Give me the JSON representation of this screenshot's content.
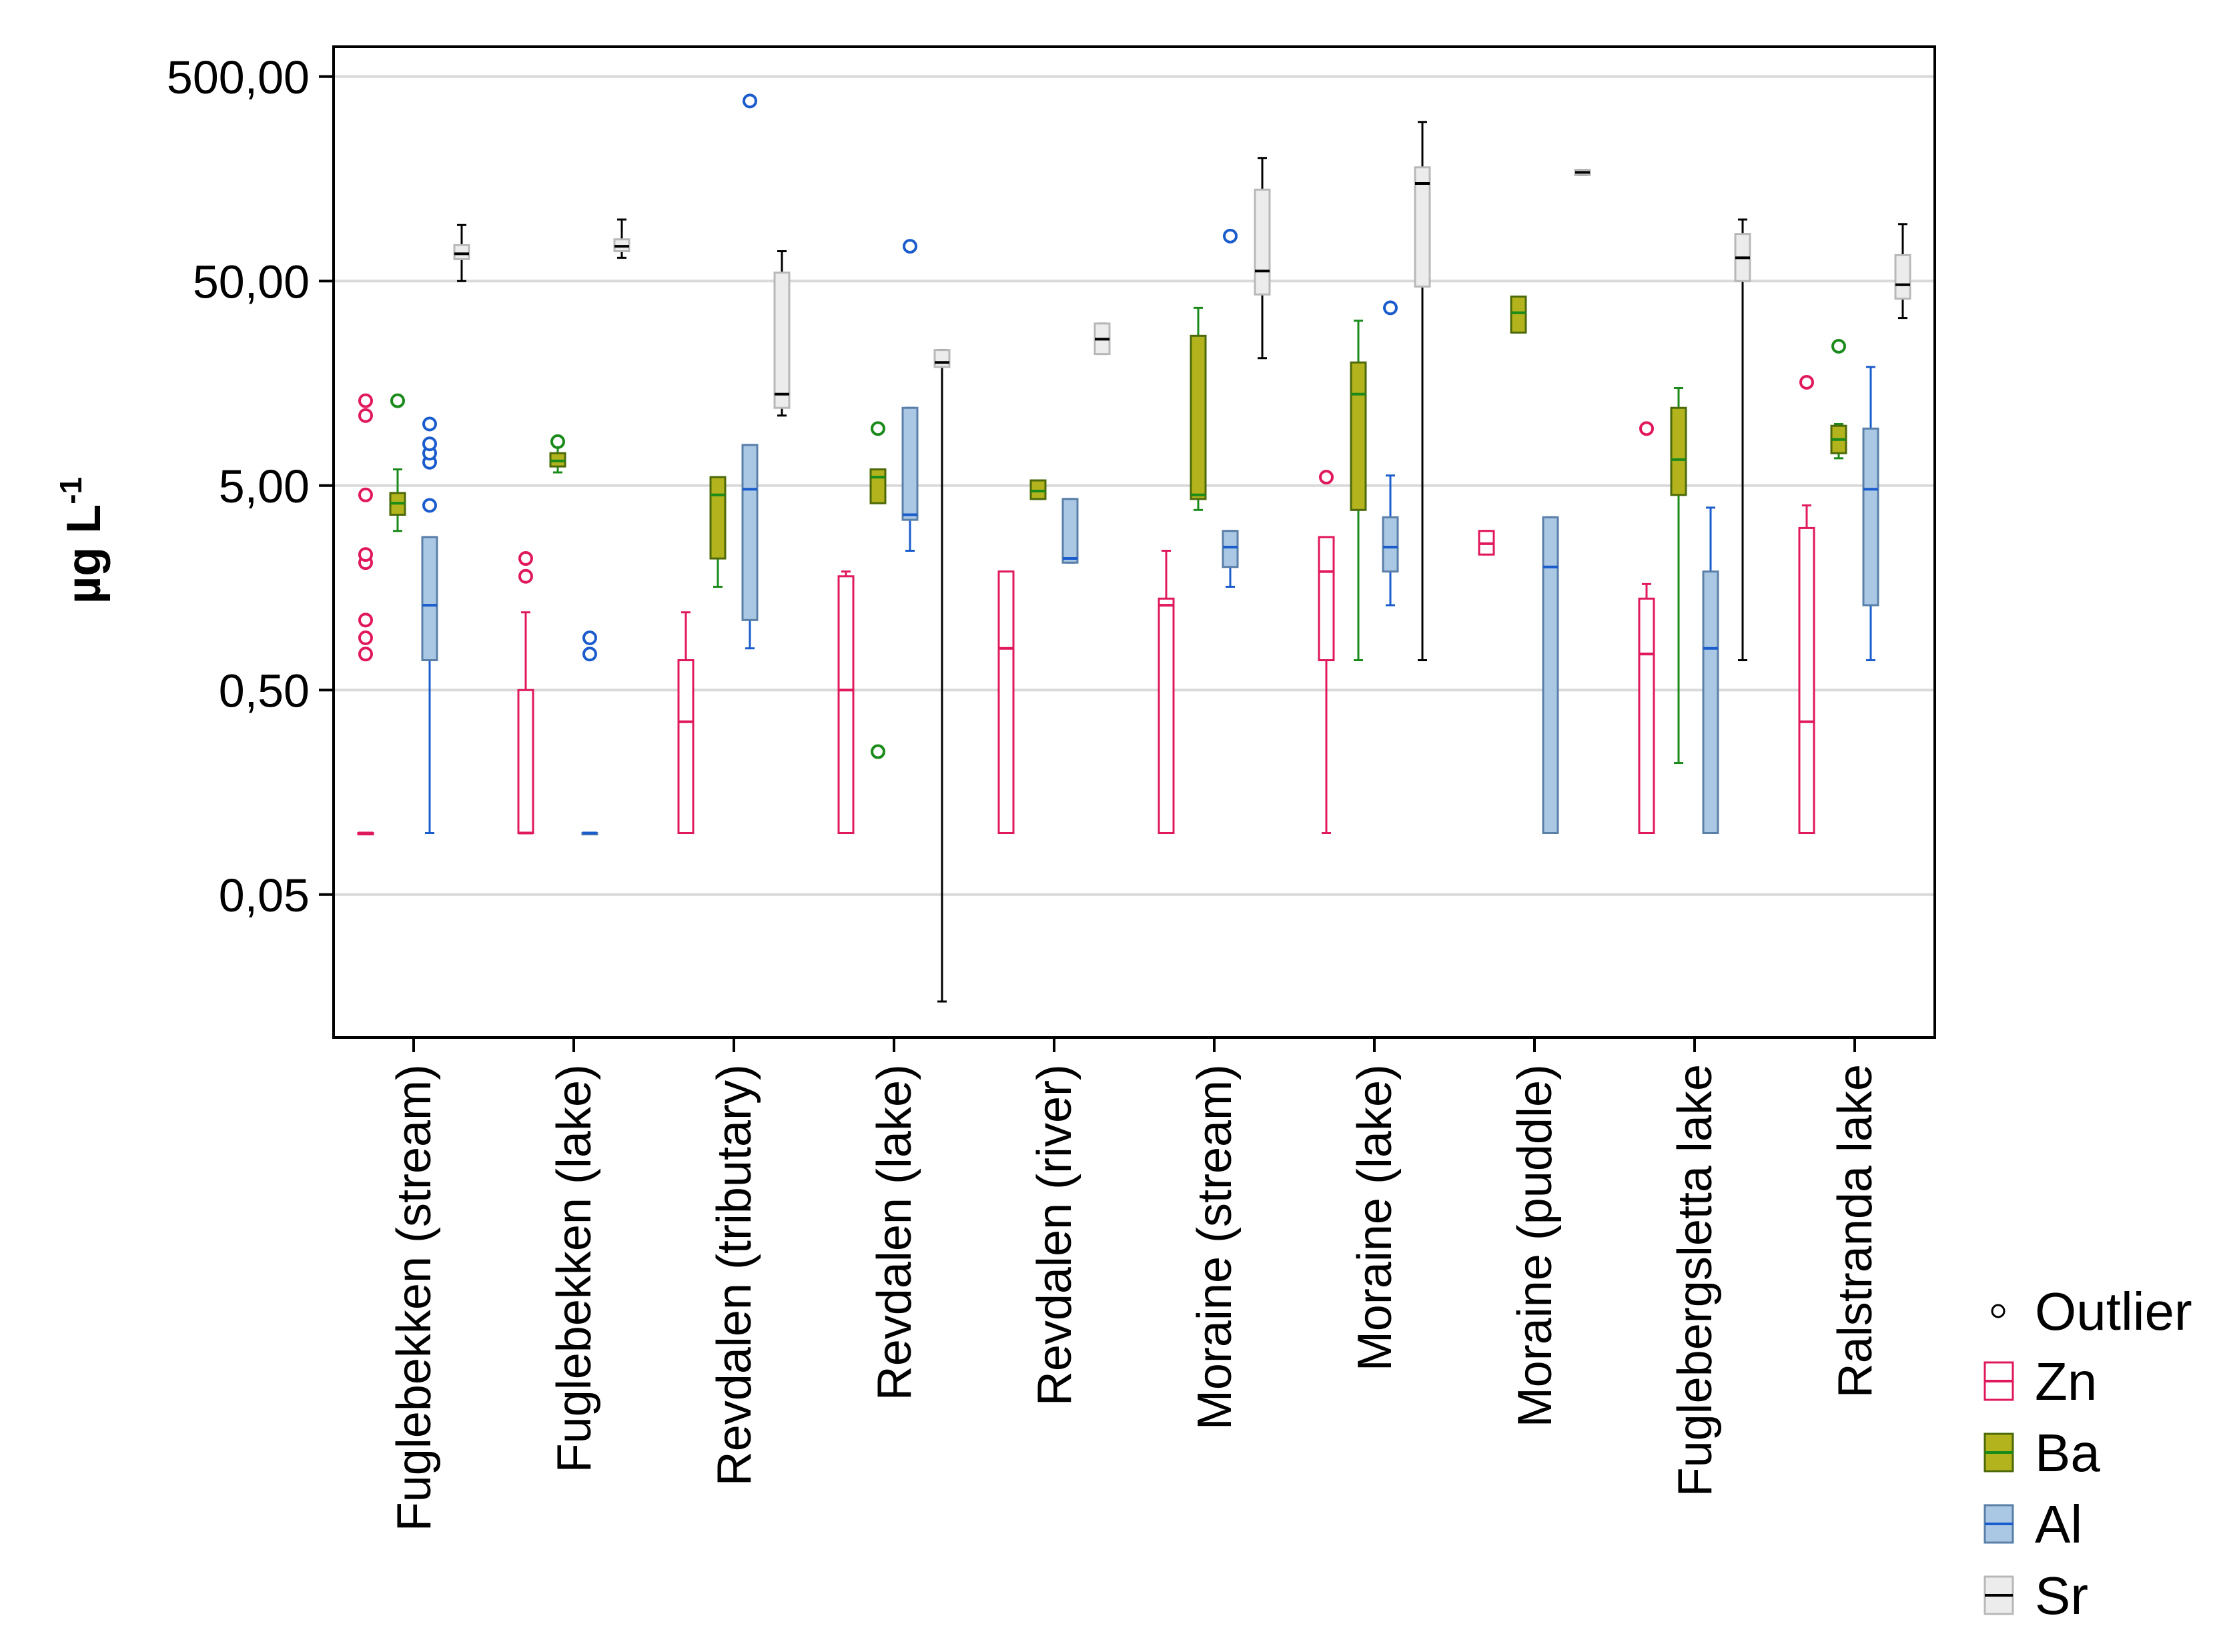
{
  "chart_data": {
    "type": "box",
    "title": "",
    "ylabel": "µg L",
    "ylabel_superscript": "-1",
    "yscale": "log",
    "ylim": [
      0.01,
      700
    ],
    "yticks": [
      0.05,
      0.5,
      5,
      50,
      500
    ],
    "ytick_labels": [
      "0,05",
      "0,50",
      "5,00",
      "50,00",
      "500,00"
    ],
    "grid": true,
    "legend_position": "right",
    "legend": {
      "outlier_label": "Outlier",
      "items": [
        {
          "name": "Zn",
          "fill": "#ffffff",
          "stroke": "#e0185c"
        },
        {
          "name": "Ba",
          "fill": "#b3b31e",
          "stroke": "#4d6a0a",
          "median": "#1a8a1a"
        },
        {
          "name": "Al",
          "fill": "#aac8e4",
          "stroke": "#5a7fa8",
          "median": "#1a5ccc"
        },
        {
          "name": "Sr",
          "fill": "#ececec",
          "stroke": "#b8b8b8",
          "median": "#000000"
        }
      ]
    },
    "categories": [
      "Fuglebekken (stream)",
      "Fuglebekken (lake)",
      "Revdalen (tributary)",
      "Revdalen (lake)",
      "Revdalen (river)",
      "Moraine (stream)",
      "Moraine (lake)",
      "Moraine (puddle)",
      "Fuglebergsletta lake",
      "Ralstranda lake"
    ],
    "series": [
      {
        "name": "Zn",
        "boxes": [
          {
            "min": 0.1,
            "q1": 0.1,
            "median": 0.1,
            "q3": 0.1,
            "max": 0.1,
            "outliers": [
              0.75,
              0.9,
              1.1,
              2.1,
              2.3,
              4.5,
              11,
              13
            ]
          },
          {
            "min": 0.1,
            "q1": 0.1,
            "median": 0.1,
            "q3": 0.5,
            "max": 1.2,
            "outliers": [
              1.8,
              2.2
            ]
          },
          {
            "min": 0.1,
            "q1": 0.1,
            "median": 0.35,
            "q3": 0.7,
            "max": 1.2,
            "outliers": []
          },
          {
            "min": 0.1,
            "q1": 0.1,
            "median": 0.5,
            "q3": 1.8,
            "max": 1.9,
            "outliers": []
          },
          {
            "min": 0.1,
            "q1": 0.1,
            "median": 0.8,
            "q3": 1.9,
            "max": 1.9,
            "outliers": []
          },
          {
            "min": 0.1,
            "q1": 0.1,
            "median": 1.3,
            "q3": 1.4,
            "max": 2.4,
            "outliers": []
          },
          {
            "min": 0.1,
            "q1": 0.7,
            "median": 1.9,
            "q3": 2.8,
            "max": 2.8,
            "outliers": [
              5.5
            ]
          },
          {
            "min": 2.3,
            "q1": 2.3,
            "median": 2.6,
            "q3": 3.0,
            "max": 3.0,
            "outliers": []
          },
          {
            "min": 0.1,
            "q1": 0.1,
            "median": 0.75,
            "q3": 1.4,
            "max": 1.65,
            "outliers": [
              9.5
            ]
          },
          {
            "min": 0.1,
            "q1": 0.1,
            "median": 0.35,
            "q3": 3.1,
            "max": 4.0,
            "outliers": [
              16
            ]
          }
        ]
      },
      {
        "name": "Ba",
        "boxes": [
          {
            "min": 3.0,
            "q1": 3.6,
            "median": 4.1,
            "q3": 4.6,
            "max": 6.0,
            "outliers": [
              13
            ]
          },
          {
            "min": 5.8,
            "q1": 6.2,
            "median": 6.6,
            "q3": 7.2,
            "max": 8.5,
            "outliers": [
              8.2
            ]
          },
          {
            "min": 1.6,
            "q1": 2.2,
            "median": 4.5,
            "q3": 5.5,
            "max": 5.5,
            "outliers": []
          },
          {
            "min": 4.1,
            "q1": 4.1,
            "median": 5.5,
            "q3": 6.0,
            "max": 6.0,
            "outliers": [
              9.5,
              0.25
            ]
          },
          {
            "min": 4.3,
            "q1": 4.3,
            "median": 4.7,
            "q3": 5.3,
            "max": 5.3,
            "outliers": []
          },
          {
            "min": 3.8,
            "q1": 4.3,
            "median": 4.5,
            "q3": 27,
            "max": 37,
            "outliers": []
          },
          {
            "min": 0.7,
            "q1": 3.8,
            "median": 14,
            "q3": 20,
            "max": 32,
            "outliers": []
          },
          {
            "min": 28,
            "q1": 28,
            "median": 35,
            "q3": 42,
            "max": 42,
            "outliers": []
          },
          {
            "min": 0.22,
            "q1": 4.5,
            "median": 6.7,
            "q3": 12,
            "max": 15,
            "outliers": []
          },
          {
            "min": 6.8,
            "q1": 7.2,
            "median": 8.4,
            "q3": 9.8,
            "max": 10,
            "outliers": [
              24
            ]
          }
        ]
      },
      {
        "name": "Al",
        "boxes": [
          {
            "min": 0.1,
            "q1": 0.7,
            "median": 1.3,
            "q3": 2.8,
            "max": 2.8,
            "outliers": [
              4.0,
              6.5,
              7.2,
              8.0,
              10
            ]
          },
          {
            "min": 0.1,
            "q1": 0.1,
            "median": 0.1,
            "q3": 0.1,
            "max": 0.1,
            "outliers": [
              0.75,
              0.9
            ]
          },
          {
            "min": 0.8,
            "q1": 1.1,
            "median": 4.8,
            "q3": 7.9,
            "max": 7.9,
            "outliers": [
              380
            ]
          },
          {
            "min": 2.4,
            "q1": 3.4,
            "median": 3.6,
            "q3": 12,
            "max": 12,
            "outliers": [
              74
            ]
          },
          {
            "min": 2.1,
            "q1": 2.1,
            "median": 2.2,
            "q3": 4.3,
            "max": 4.3,
            "outliers": []
          },
          {
            "min": 1.6,
            "q1": 2.0,
            "median": 2.5,
            "q3": 3.0,
            "max": 3.0,
            "outliers": [
              83
            ]
          },
          {
            "min": 1.3,
            "q1": 1.9,
            "median": 2.5,
            "q3": 3.5,
            "max": 5.6,
            "outliers": [
              37
            ]
          },
          {
            "min": 0.1,
            "q1": 0.1,
            "median": 2.0,
            "q3": 3.5,
            "max": 3.5,
            "outliers": []
          },
          {
            "min": 0.1,
            "q1": 0.1,
            "median": 0.8,
            "q3": 1.9,
            "max": 3.9,
            "outliers": []
          },
          {
            "min": 0.7,
            "q1": 1.3,
            "median": 4.8,
            "q3": 9.5,
            "max": 19,
            "outliers": []
          }
        ]
      },
      {
        "name": "Sr",
        "boxes": [
          {
            "min": 50,
            "q1": 64,
            "median": 68,
            "q3": 75,
            "max": 94,
            "outliers": []
          },
          {
            "min": 65,
            "q1": 70,
            "median": 74,
            "q3": 80,
            "max": 100,
            "outliers": []
          },
          {
            "min": 11,
            "q1": 12,
            "median": 14,
            "q3": 55,
            "max": 70,
            "outliers": []
          },
          {
            "min": 0.015,
            "q1": 19,
            "median": 20,
            "q3": 23,
            "max": 23,
            "outliers": []
          },
          {
            "min": 22,
            "q1": 22,
            "median": 26,
            "q3": 31,
            "max": 31,
            "outliers": []
          },
          {
            "min": 21,
            "q1": 43,
            "median": 56,
            "q3": 140,
            "max": 200,
            "outliers": []
          },
          {
            "min": 0.7,
            "q1": 47,
            "median": 150,
            "q3": 180,
            "max": 300,
            "outliers": []
          },
          {
            "min": 165,
            "q1": 165,
            "median": 170,
            "q3": 175,
            "max": 175,
            "outliers": []
          },
          {
            "min": 0.7,
            "q1": 50,
            "median": 65,
            "q3": 85,
            "max": 100,
            "outliers": []
          },
          {
            "min": 33,
            "q1": 41,
            "median": 48,
            "q3": 67,
            "max": 95,
            "outliers": []
          }
        ]
      }
    ]
  }
}
